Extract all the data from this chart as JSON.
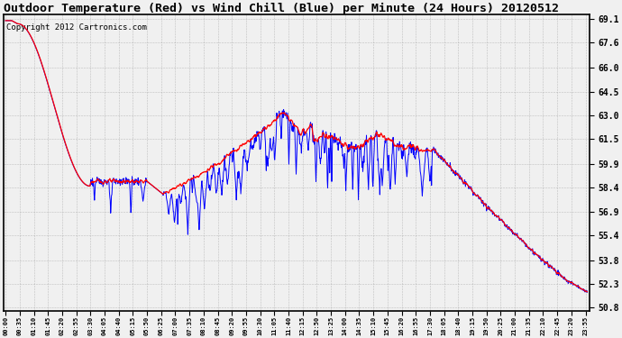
{
  "title": "Outdoor Temperature (Red) vs Wind Chill (Blue) per Minute (24 Hours) 20120512",
  "copyright": "Copyright 2012 Cartronics.com",
  "y_min": 50.8,
  "y_max": 69.1,
  "yticks": [
    69.1,
    67.6,
    66.0,
    64.5,
    63.0,
    61.5,
    59.9,
    58.4,
    56.9,
    55.4,
    53.8,
    52.3,
    50.8
  ],
  "background_color": "#f0f0f0",
  "grid_color": "#aaaaaa",
  "red_color": "#ff0000",
  "blue_color": "#0000ff",
  "title_fontsize": 9.5,
  "copyright_fontsize": 6.5
}
